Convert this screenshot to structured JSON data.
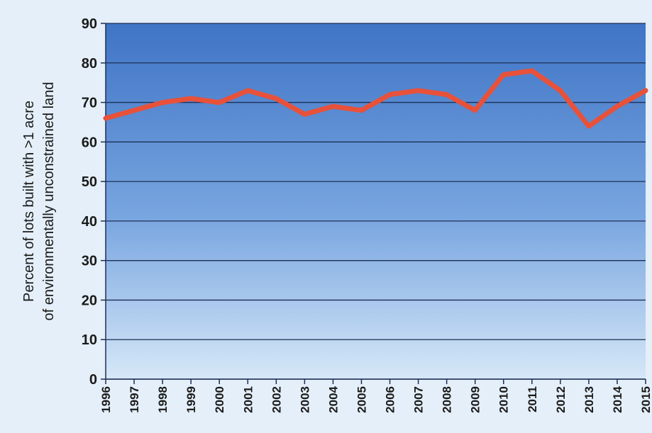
{
  "chart_data": {
    "type": "line",
    "title": "",
    "xlabel": "",
    "ylabel_lines": [
      "Percent of lots built with >1 acre",
      "of environmentally unconstrained land"
    ],
    "ylim": [
      0,
      90
    ],
    "yticks": [
      0,
      10,
      20,
      30,
      40,
      50,
      60,
      70,
      80,
      90
    ],
    "grid": true,
    "legend": "none",
    "x": [
      "1996",
      "1997",
      "1998",
      "1999",
      "2000",
      "2001",
      "2002",
      "2003",
      "2004",
      "2005",
      "2006",
      "2007",
      "2008",
      "2009",
      "2010",
      "2011",
      "2012",
      "2013",
      "2014",
      "2015"
    ],
    "series": [
      {
        "values": [
          66,
          68,
          70,
          71,
          70,
          73,
          71,
          67,
          69,
          68,
          72,
          73,
          72,
          68,
          77,
          78,
          73,
          64,
          69,
          73
        ],
        "color": "#e8513a"
      }
    ],
    "colors": {
      "plot_top": "#3f74c6",
      "plot_bottom": "#d6e8f8",
      "grid": "#1f2f55",
      "axis": "#1f2f55"
    }
  }
}
